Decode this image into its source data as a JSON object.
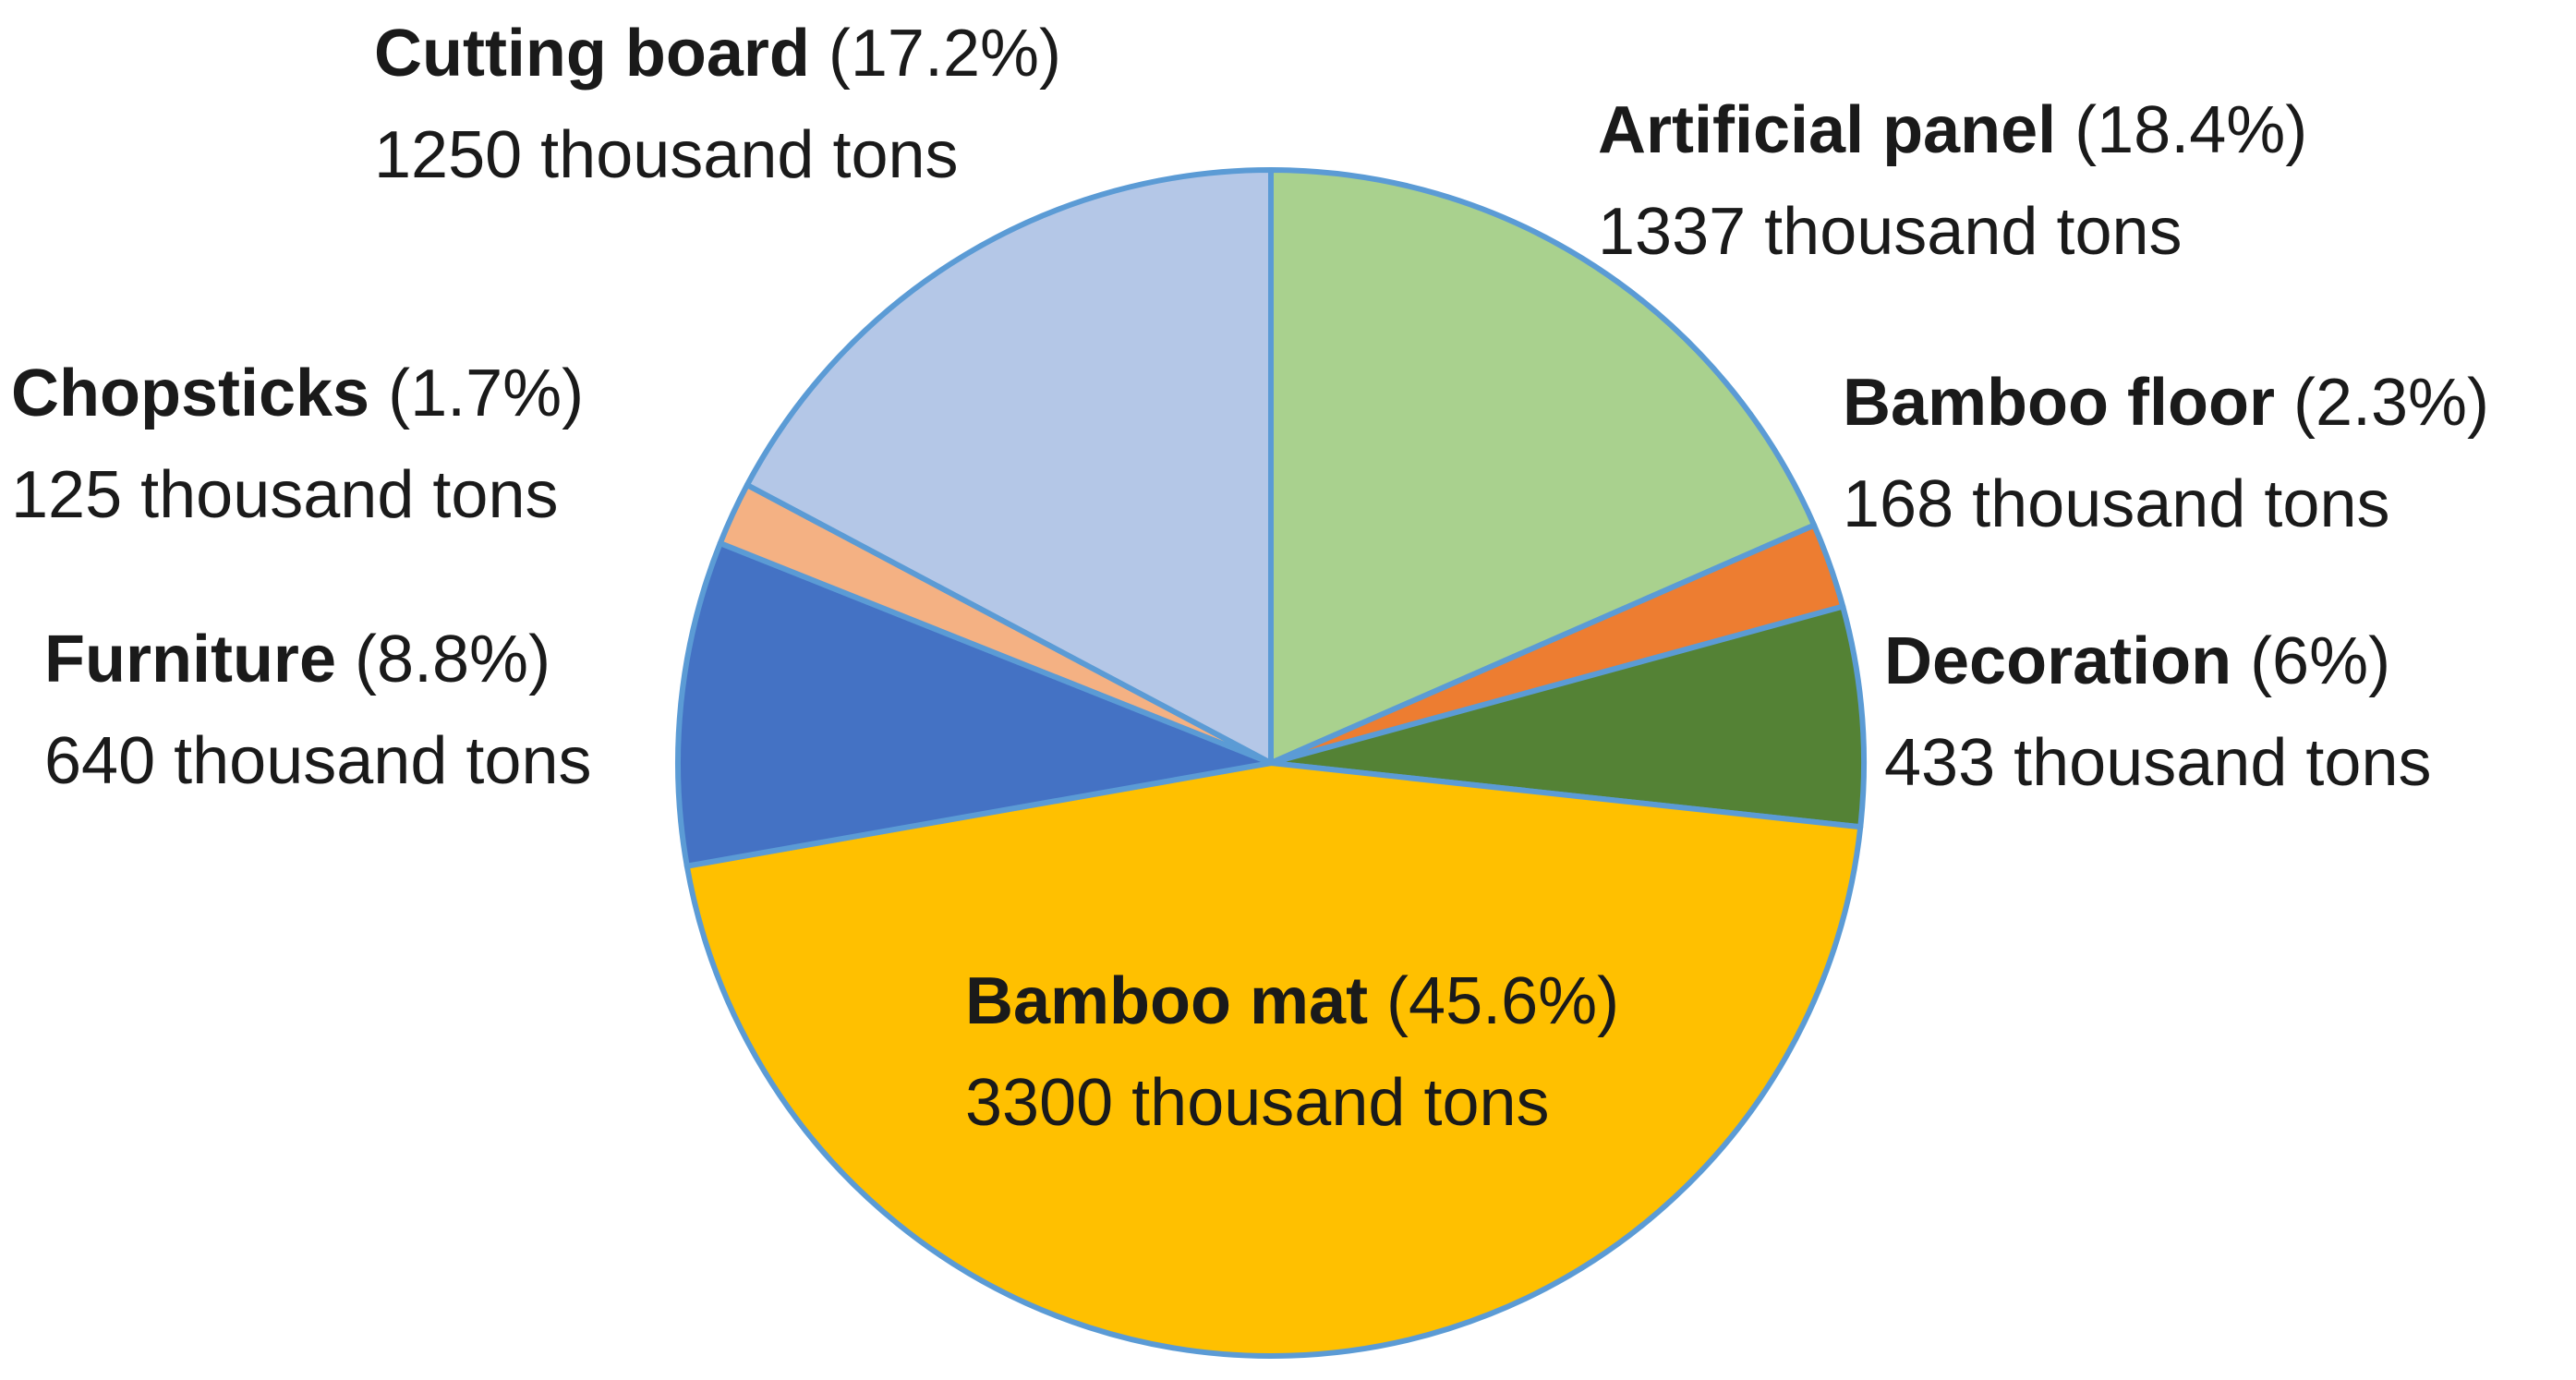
{
  "chart_data": {
    "type": "pie",
    "title": "",
    "unit": "thousand tons",
    "start_angle_deg": 0,
    "direction": "clockwise",
    "slice_border_color": "#5B9BD5",
    "slices": [
      {
        "name": "Artificial panel",
        "percent_label": "(18.4%)",
        "value_label": "1337 thousand tons",
        "value": 1337,
        "color": "#A9D18E"
      },
      {
        "name": "Bamboo floor",
        "percent_label": "(2.3%)",
        "value_label": "168 thousand tons",
        "value": 168,
        "color": "#ED7D31"
      },
      {
        "name": "Decoration",
        "percent_label": "(6%)",
        "value_label": "433 thousand tons",
        "value": 433,
        "color": "#548235"
      },
      {
        "name": "Bamboo mat",
        "percent_label": "(45.6%)",
        "value_label": "3300 thousand tons",
        "value": 3300,
        "color": "#FFC000"
      },
      {
        "name": "Furniture",
        "percent_label": "(8.8%)",
        "value_label": "640 thousand tons",
        "value": 640,
        "color": "#4472C4"
      },
      {
        "name": "Chopsticks",
        "percent_label": "(1.7%)",
        "value_label": "125 thousand tons",
        "value": 125,
        "color": "#F4B183"
      },
      {
        "name": "Cutting board",
        "percent_label": "(17.2%)",
        "value_label": "1250 thousand tons",
        "value": 1250,
        "color": "#B4C7E7"
      }
    ]
  }
}
